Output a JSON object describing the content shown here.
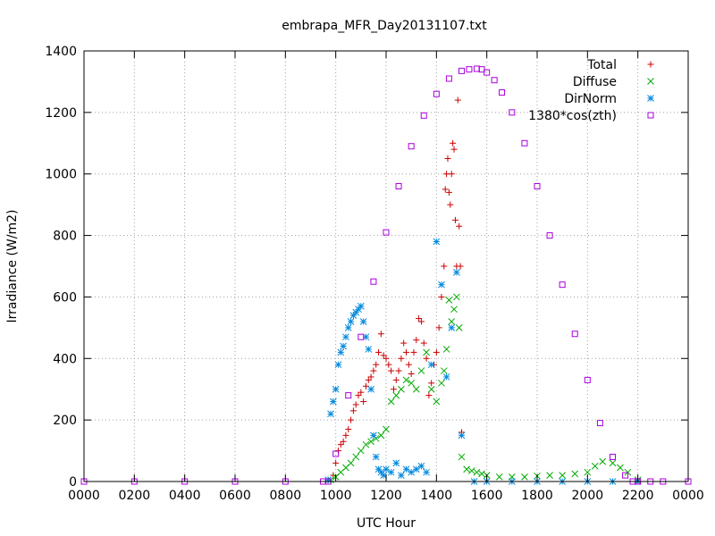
{
  "chart_data": {
    "type": "scatter",
    "title": "embrapa_MFR_Day20131107.txt",
    "xlabel": "UTC Hour",
    "ylabel": "Irradiance (W/m2)",
    "xlim": [
      0,
      24
    ],
    "ylim": [
      0,
      1400
    ],
    "grid": true,
    "legend_position": "top-right",
    "x_ticks": [
      {
        "value": 0,
        "label": "0000"
      },
      {
        "value": 2,
        "label": "0200"
      },
      {
        "value": 4,
        "label": "0400"
      },
      {
        "value": 6,
        "label": "0600"
      },
      {
        "value": 8,
        "label": "0800"
      },
      {
        "value": 10,
        "label": "1000"
      },
      {
        "value": 12,
        "label": "1200"
      },
      {
        "value": 14,
        "label": "1400"
      },
      {
        "value": 16,
        "label": "1600"
      },
      {
        "value": 18,
        "label": "1800"
      },
      {
        "value": 20,
        "label": "2000"
      },
      {
        "value": 22,
        "label": "2200"
      },
      {
        "value": 24,
        "label": "0000"
      }
    ],
    "y_ticks": [
      0,
      200,
      400,
      600,
      800,
      1000,
      1200,
      1400
    ],
    "series": [
      {
        "name": "Total",
        "marker": "plus",
        "color": "#cc0000",
        "x": [
          9.9,
          10.0,
          10.1,
          10.2,
          10.3,
          10.4,
          10.5,
          10.6,
          10.7,
          10.8,
          10.9,
          11.0,
          11.1,
          11.2,
          11.3,
          11.4,
          11.5,
          11.6,
          11.7,
          11.8,
          11.9,
          12.0,
          12.1,
          12.2,
          12.3,
          12.4,
          12.5,
          12.6,
          12.7,
          12.8,
          12.9,
          13.0,
          13.1,
          13.2,
          13.3,
          13.4,
          13.5,
          13.6,
          13.7,
          13.8,
          13.9,
          14.0,
          14.1,
          14.2,
          14.3,
          14.35,
          14.4,
          14.45,
          14.5,
          14.55,
          14.6,
          14.65,
          14.7,
          14.75,
          14.8,
          14.85,
          14.9,
          14.95,
          15.0
        ],
        "y": [
          20,
          60,
          100,
          120,
          130,
          150,
          170,
          200,
          230,
          250,
          280,
          290,
          260,
          310,
          330,
          340,
          360,
          380,
          420,
          480,
          410,
          400,
          380,
          360,
          300,
          330,
          360,
          400,
          450,
          420,
          380,
          350,
          420,
          460,
          530,
          520,
          450,
          400,
          280,
          320,
          380,
          420,
          500,
          600,
          700,
          950,
          1000,
          1050,
          940,
          900,
          1000,
          1100,
          1080,
          850,
          700,
          1240,
          830,
          700,
          160
        ]
      },
      {
        "name": "Diffuse",
        "marker": "cross",
        "color": "#00aa00",
        "x": [
          9.8,
          10.0,
          10.2,
          10.4,
          10.6,
          10.8,
          11.0,
          11.2,
          11.4,
          11.6,
          11.8,
          12.0,
          12.2,
          12.4,
          12.6,
          12.8,
          13.0,
          13.2,
          13.4,
          13.6,
          13.8,
          14.0,
          14.2,
          14.3,
          14.4,
          14.5,
          14.6,
          14.7,
          14.8,
          14.9,
          15.0,
          15.2,
          15.4,
          15.6,
          15.8,
          16.0,
          16.5,
          17.0,
          17.5,
          18.0,
          18.5,
          19.0,
          19.5,
          20.0,
          20.3,
          20.6,
          21.0,
          21.3,
          21.6,
          22.0
        ],
        "y": [
          5,
          15,
          30,
          45,
          60,
          80,
          100,
          120,
          130,
          140,
          150,
          170,
          260,
          280,
          300,
          330,
          320,
          300,
          360,
          420,
          300,
          260,
          320,
          360,
          430,
          590,
          520,
          560,
          600,
          500,
          80,
          40,
          35,
          30,
          25,
          20,
          15,
          15,
          15,
          18,
          20,
          20,
          25,
          30,
          50,
          65,
          60,
          45,
          30,
          5
        ]
      },
      {
        "name": "DirNorm",
        "marker": "star",
        "color": "#0088dd",
        "x": [
          9.7,
          9.8,
          9.9,
          10.0,
          10.1,
          10.2,
          10.3,
          10.4,
          10.5,
          10.6,
          10.7,
          10.8,
          10.9,
          11.0,
          11.1,
          11.2,
          11.3,
          11.4,
          11.5,
          11.6,
          11.7,
          11.8,
          11.9,
          12.0,
          12.2,
          12.4,
          12.6,
          12.8,
          13.0,
          13.2,
          13.4,
          13.6,
          13.8,
          14.0,
          14.2,
          14.4,
          14.6,
          14.8,
          15.0,
          15.5,
          16.0,
          17.0,
          18.0,
          19.0,
          20.0,
          21.0,
          22.0
        ],
        "y": [
          5,
          220,
          260,
          300,
          380,
          420,
          440,
          470,
          500,
          520,
          540,
          550,
          560,
          570,
          520,
          470,
          430,
          300,
          150,
          80,
          40,
          30,
          20,
          40,
          30,
          60,
          20,
          40,
          30,
          40,
          50,
          30,
          380,
          780,
          640,
          340,
          500,
          680,
          150,
          0,
          0,
          0,
          0,
          0,
          0,
          0,
          0
        ]
      },
      {
        "name": "1380*cos(zth)",
        "marker": "square",
        "color": "#aa00dd",
        "x": [
          0,
          2,
          4,
          6,
          8,
          9.5,
          9.7,
          10.0,
          10.5,
          11.0,
          11.5,
          12.0,
          12.5,
          13.0,
          13.5,
          14.0,
          14.5,
          15.0,
          15.3,
          15.6,
          15.8,
          16.0,
          16.3,
          16.6,
          17.0,
          17.5,
          18.0,
          18.5,
          19.0,
          19.5,
          20.0,
          20.5,
          21.0,
          21.5,
          21.8,
          22.0,
          22.5,
          23.0,
          24.0
        ],
        "y": [
          0,
          0,
          0,
          0,
          0,
          0,
          0,
          90,
          280,
          470,
          650,
          810,
          960,
          1090,
          1190,
          1260,
          1310,
          1335,
          1340,
          1342,
          1340,
          1330,
          1305,
          1265,
          1200,
          1100,
          960,
          800,
          640,
          480,
          330,
          190,
          80,
          20,
          0,
          0,
          0,
          0,
          0
        ]
      }
    ]
  }
}
